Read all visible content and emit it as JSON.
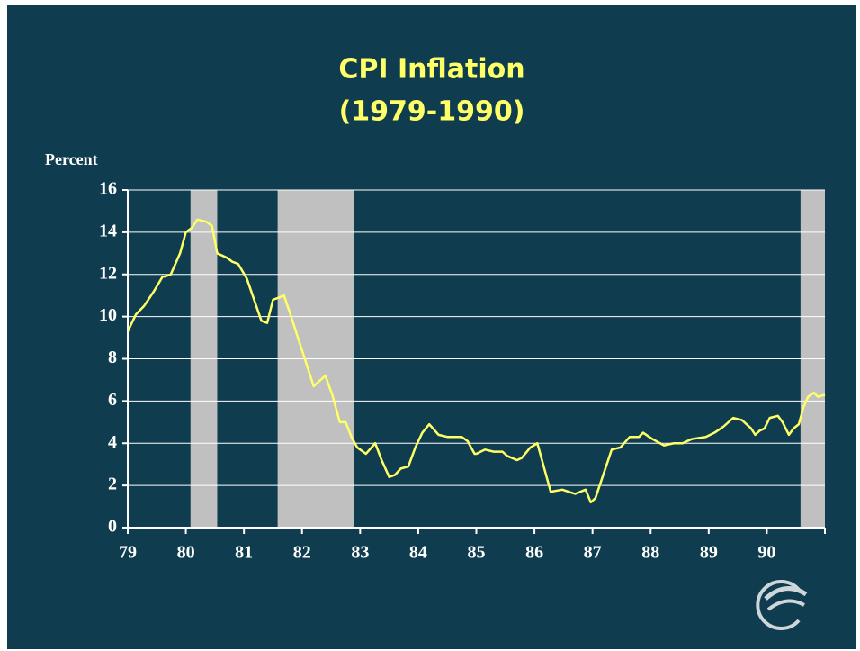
{
  "chart_data": {
    "type": "line",
    "title": "CPI Inflation",
    "subtitle": "(1979-1990)",
    "y_label": "Percent",
    "x": [
      79.0,
      79.14,
      79.28,
      79.45,
      79.6,
      79.64,
      79.74,
      79.9,
      80.0,
      80.1,
      80.2,
      80.35,
      80.45,
      80.54,
      80.7,
      80.8,
      80.9,
      81.05,
      81.2,
      81.3,
      81.4,
      81.5,
      81.6,
      81.69,
      81.8,
      82.0,
      82.2,
      82.4,
      82.52,
      82.65,
      82.75,
      82.85,
      82.95,
      83.1,
      83.26,
      83.37,
      83.5,
      83.6,
      83.7,
      83.83,
      83.95,
      84.07,
      84.19,
      84.35,
      84.5,
      84.75,
      84.85,
      84.97,
      85.0,
      85.15,
      85.3,
      85.45,
      85.53,
      85.7,
      85.78,
      85.93,
      86.05,
      86.28,
      86.48,
      86.7,
      86.88,
      86.97,
      87.05,
      87.33,
      87.48,
      87.64,
      87.8,
      87.87,
      88.03,
      88.23,
      88.4,
      88.55,
      88.71,
      88.95,
      89.1,
      89.26,
      89.42,
      89.57,
      89.73,
      89.8,
      89.88,
      89.96,
      90.05,
      90.19,
      90.27,
      90.38,
      90.46,
      90.55,
      90.63,
      90.71,
      90.81,
      90.88,
      91.0
    ],
    "values": [
      9.3,
      10.1,
      10.5,
      11.2,
      11.9,
      11.9,
      12.0,
      13.0,
      14.0,
      14.2,
      14.6,
      14.5,
      14.3,
      13.0,
      12.8,
      12.6,
      12.5,
      11.8,
      10.6,
      9.8,
      9.7,
      10.8,
      10.9,
      11.0,
      10.1,
      8.4,
      6.7,
      7.2,
      6.3,
      5.0,
      5.0,
      4.3,
      3.8,
      3.5,
      4.0,
      3.2,
      2.4,
      2.5,
      2.8,
      2.9,
      3.8,
      4.5,
      4.9,
      4.4,
      4.3,
      4.3,
      4.1,
      3.5,
      3.5,
      3.7,
      3.6,
      3.6,
      3.4,
      3.2,
      3.3,
      3.8,
      4.0,
      1.7,
      1.8,
      1.6,
      1.8,
      1.2,
      1.4,
      3.7,
      3.8,
      4.3,
      4.3,
      4.5,
      4.2,
      3.9,
      4.0,
      4.0,
      4.2,
      4.3,
      4.5,
      4.8,
      5.2,
      5.1,
      4.7,
      4.4,
      4.6,
      4.7,
      5.2,
      5.3,
      5.0,
      4.4,
      4.7,
      4.9,
      5.7,
      6.2,
      6.4,
      6.2,
      6.3
    ],
    "color": "#ffff66",
    "shaded_regions": [
      [
        80.08,
        80.54
      ],
      [
        81.58,
        82.89
      ],
      [
        90.58,
        91.0
      ]
    ],
    "shade_color": "#c0c0c0",
    "xlim": [
      79,
      91
    ],
    "xticks": [
      79,
      80,
      81,
      82,
      83,
      84,
      85,
      86,
      87,
      88,
      89,
      90
    ],
    "ylim": [
      0,
      16
    ],
    "yticks": [
      0,
      2,
      4,
      6,
      8,
      10,
      12,
      14,
      16
    ],
    "grid": true
  }
}
